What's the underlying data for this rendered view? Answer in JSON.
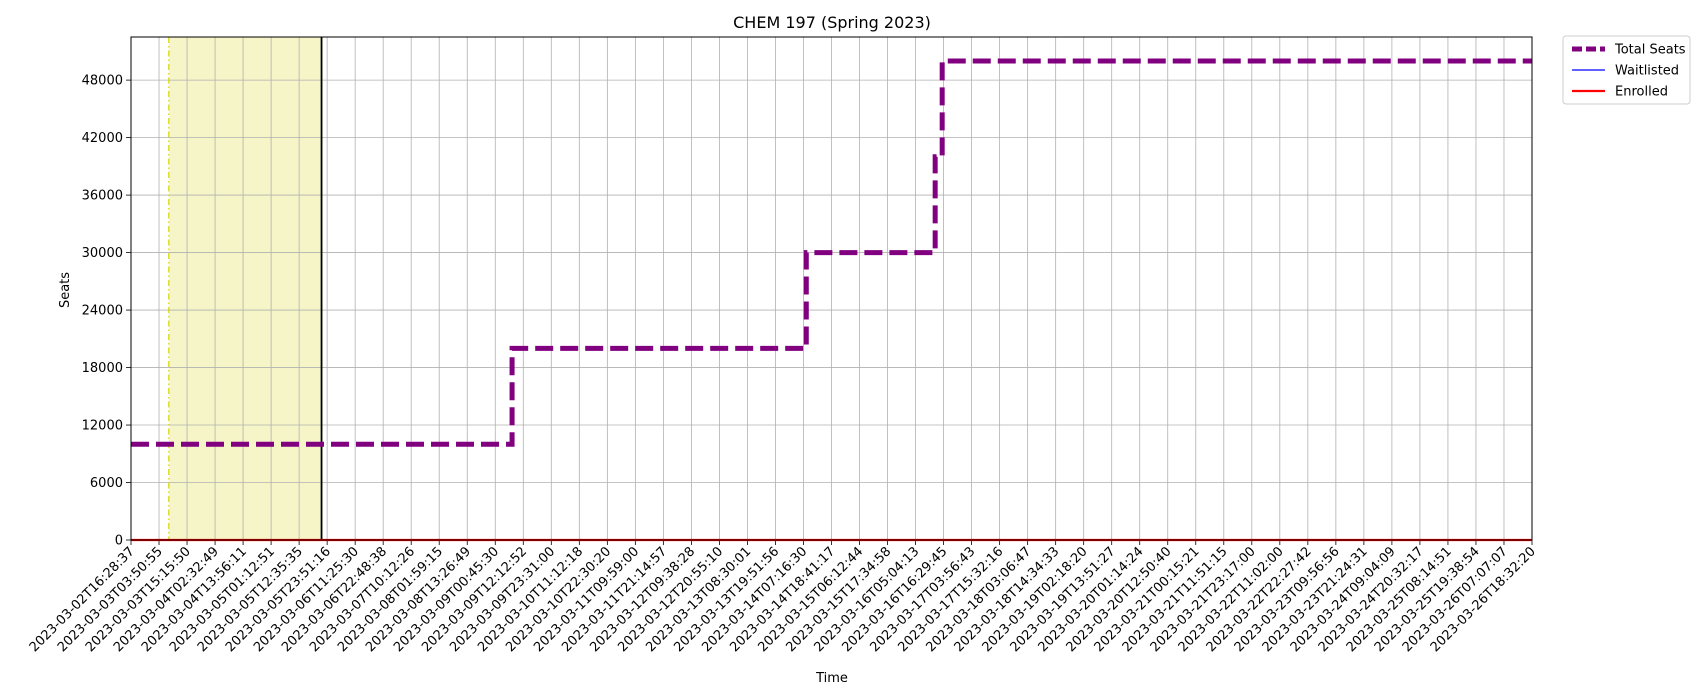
{
  "chart_data": {
    "type": "line",
    "title": "CHEM 197 (Spring 2023)",
    "xlabel": "Time",
    "ylabel": "Seats",
    "ylim": [
      0,
      52500
    ],
    "yticks": [
      0,
      6000,
      12000,
      18000,
      24000,
      30000,
      36000,
      42000,
      48000
    ],
    "grid": true,
    "legend_position": "outside-top-right",
    "x_tick_labels": [
      "2023-03-02T16:28:37",
      "2023-03-03T03:50:55",
      "2023-03-03T15:15:50",
      "2023-03-04T02:32:49",
      "2023-03-04T13:56:11",
      "2023-03-05T01:12:51",
      "2023-03-05T12:35:35",
      "2023-03-05T23:51:16",
      "2023-03-06T11:25:30",
      "2023-03-06T22:48:38",
      "2023-03-07T10:12:26",
      "2023-03-08T01:59:15",
      "2023-03-08T13:26:49",
      "2023-03-09T00:45:30",
      "2023-03-09T12:12:52",
      "2023-03-09T23:31:00",
      "2023-03-10T11:12:18",
      "2023-03-10T22:30:20",
      "2023-03-11T09:59:00",
      "2023-03-11T21:14:57",
      "2023-03-12T09:38:28",
      "2023-03-12T20:55:10",
      "2023-03-13T08:30:01",
      "2023-03-13T19:51:56",
      "2023-03-14T07:16:30",
      "2023-03-14T18:41:17",
      "2023-03-15T06:12:44",
      "2023-03-15T17:34:58",
      "2023-03-16T05:04:13",
      "2023-03-16T16:29:45",
      "2023-03-17T03:56:43",
      "2023-03-17T15:32:16",
      "2023-03-18T03:06:47",
      "2023-03-18T14:34:33",
      "2023-03-19T02:18:20",
      "2023-03-19T13:51:27",
      "2023-03-20T01:14:24",
      "2023-03-20T12:50:40",
      "2023-03-21T00:15:21",
      "2023-03-21T11:51:15",
      "2023-03-21T23:17:00",
      "2023-03-22T11:02:00",
      "2023-03-22T22:27:42",
      "2023-03-23T09:56:56",
      "2023-03-23T21:24:31",
      "2023-03-24T09:04:09",
      "2023-03-24T20:32:17",
      "2023-03-25T08:14:51",
      "2023-03-25T19:38:54",
      "2023-03-26T07:07:07",
      "2023-03-26T18:32:20"
    ],
    "series": [
      {
        "name": "Total Seats",
        "color": "#800080",
        "style": "dashed",
        "points": [
          {
            "x": 0,
            "y": 10000
          },
          {
            "x": 13.6,
            "y": 10000
          },
          {
            "x": 13.6,
            "y": 20000
          },
          {
            "x": 24.1,
            "y": 20000
          },
          {
            "x": 24.1,
            "y": 30000
          },
          {
            "x": 28.7,
            "y": 30000
          },
          {
            "x": 28.7,
            "y": 40000
          },
          {
            "x": 28.95,
            "y": 40000
          },
          {
            "x": 28.95,
            "y": 50000
          },
          {
            "x": 50,
            "y": 50000
          }
        ]
      },
      {
        "name": "Waitlisted",
        "color": "#0000ff",
        "style": "solid",
        "points": [
          {
            "x": 0,
            "y": 0
          },
          {
            "x": 50,
            "y": 0
          }
        ]
      },
      {
        "name": "Enrolled",
        "color": "#ff0000",
        "style": "solid",
        "points": [
          {
            "x": 0,
            "y": 0
          },
          {
            "x": 50,
            "y": 0
          }
        ]
      }
    ],
    "annotations": {
      "shaded_region": {
        "x_start": 1.35,
        "x_end": 6.8,
        "color": "#f5f5c8"
      },
      "yellow_dashdot_line_x": 1.35,
      "black_vertical_line_x": 6.8
    }
  }
}
